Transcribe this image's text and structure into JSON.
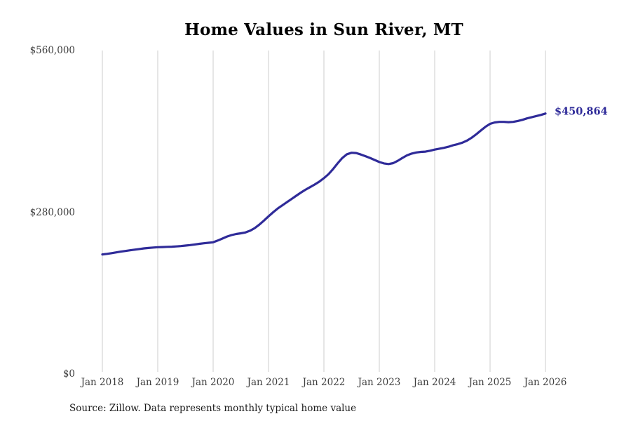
{
  "chart": {
    "title": "Home Values in Sun River, MT",
    "latest_value_label": "$450,864",
    "source_note": "Source: Zillow. Data represents monthly typical home value"
  },
  "chart_data": {
    "type": "line",
    "title": "Home Values in Sun River, MT",
    "frequency": "monthly",
    "x_start": "2018-01",
    "x_end": "2026-01",
    "x_tick_labels": [
      "Jan 2018",
      "Jan 2019",
      "Jan 2020",
      "Jan 2021",
      "Jan 2022",
      "Jan 2023",
      "Jan 2024",
      "Jan 2025",
      "Jan 2026"
    ],
    "y_tick_labels": [
      "$0",
      "$280,000",
      "$560,000"
    ],
    "y_tick_values": [
      0,
      280000,
      560000
    ],
    "ylim": [
      0,
      560000
    ],
    "grid": "vertical-only",
    "legend": "none",
    "line_color": "#2f2b99",
    "grid_color": "#cccccc",
    "end_label": "$450,864",
    "latest_value": 450864,
    "values": [
      207000,
      208000,
      209200,
      210500,
      211800,
      213000,
      214200,
      215300,
      216400,
      217400,
      218200,
      218900,
      219500,
      219800,
      220100,
      220400,
      220900,
      221500,
      222300,
      223200,
      224200,
      225300,
      226300,
      227200,
      228000,
      231000,
      234500,
      238000,
      240500,
      242300,
      243500,
      245000,
      248000,
      252500,
      258500,
      265500,
      273000,
      280000,
      286500,
      292000,
      297500,
      303000,
      308500,
      314000,
      319000,
      323500,
      328000,
      333000,
      339000,
      346000,
      355000,
      365000,
      374000,
      380500,
      383000,
      382500,
      380000,
      377000,
      374000,
      370500,
      367000,
      364500,
      363500,
      365000,
      369000,
      374000,
      378500,
      381500,
      383500,
      384500,
      385000,
      386500,
      388500,
      390000,
      391500,
      393500,
      396000,
      398000,
      400500,
      404000,
      409000,
      415000,
      421500,
      428000,
      433000,
      435500,
      436500,
      436500,
      436000,
      436500,
      438000,
      440000,
      442500,
      444500,
      446500,
      448500,
      450864
    ]
  }
}
